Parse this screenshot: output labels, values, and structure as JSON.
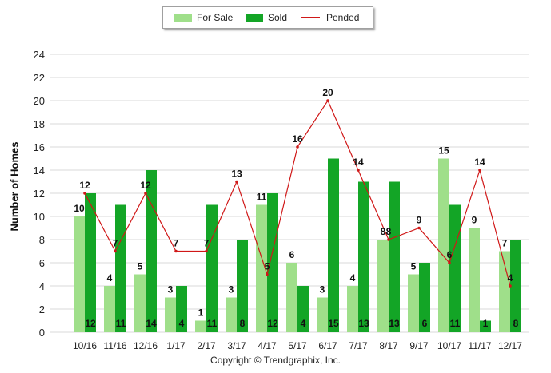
{
  "legend": {
    "for_sale": "For Sale",
    "sold": "Sold",
    "pended": "Pended"
  },
  "copyright": "Copyright © Trendgraphix, Inc.",
  "colors": {
    "for_sale": "#9fdf8a",
    "sold": "#13a526",
    "pended": "#d01818",
    "grid": "#d9d9d9"
  },
  "chart_data": {
    "type": "bar",
    "title": "",
    "xlabel": "",
    "ylabel": "Number of Homes",
    "ylim": [
      0,
      24
    ],
    "yticks": [
      0,
      2,
      4,
      6,
      8,
      10,
      12,
      14,
      16,
      18,
      20,
      22,
      24
    ],
    "grid": true,
    "legend_position": "top-center",
    "categories": [
      "10/16",
      "11/16",
      "12/16",
      "1/17",
      "2/17",
      "3/17",
      "4/17",
      "5/17",
      "6/17",
      "7/17",
      "8/17",
      "9/17",
      "10/17",
      "11/17",
      "12/17"
    ],
    "series": [
      {
        "name": "For Sale",
        "type": "bar",
        "values": [
          10,
          4,
          5,
          3,
          1,
          3,
          11,
          6,
          3,
          4,
          8,
          5,
          15,
          9,
          7
        ]
      },
      {
        "name": "Sold",
        "type": "bar",
        "values": [
          12,
          11,
          14,
          4,
          11,
          8,
          12,
          4,
          15,
          13,
          13,
          6,
          11,
          1,
          8
        ]
      },
      {
        "name": "Pended",
        "type": "line",
        "values": [
          12,
          7,
          12,
          7,
          7,
          13,
          5,
          16,
          20,
          14,
          8,
          9,
          6,
          14,
          4
        ]
      }
    ]
  }
}
